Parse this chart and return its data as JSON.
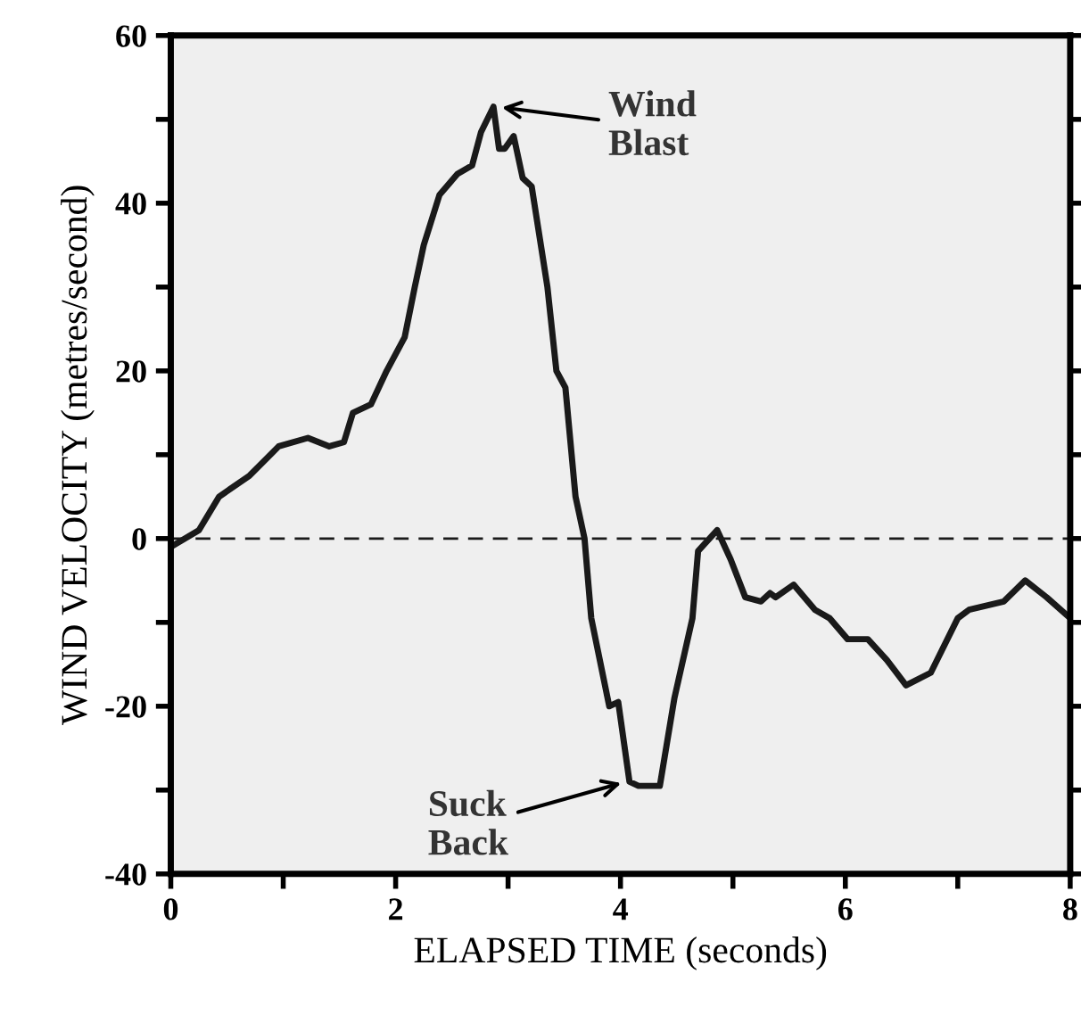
{
  "chart_data": {
    "type": "line",
    "xlabel": "ELAPSED TIME (seconds)",
    "ylabel": "WIND VELOCITY (metres/second)",
    "x": [
      0,
      0.25,
      0.43,
      0.7,
      0.96,
      1.22,
      1.41,
      1.54,
      1.62,
      1.78,
      1.92,
      2.08,
      2.17,
      2.25,
      2.39,
      2.55,
      2.68,
      2.76,
      2.87,
      2.92,
      2.97,
      3.05,
      3.13,
      3.21,
      3.35,
      3.43,
      3.51,
      3.6,
      3.68,
      3.74,
      3.9,
      3.98,
      4.08,
      4.16,
      4.35,
      4.48,
      4.64,
      4.69,
      4.86,
      4.98,
      5.11,
      5.25,
      5.33,
      5.38,
      5.54,
      5.73,
      5.86,
      6.02,
      6.2,
      6.37,
      6.54,
      6.76,
      7.0,
      7.1,
      7.41,
      7.6,
      7.79,
      8.0
    ],
    "series": [
      {
        "color": "#1a1a1a",
        "values": [
          -1,
          1,
          5,
          7.5,
          11,
          12,
          11,
          11.5,
          15,
          16,
          20,
          24,
          30,
          35,
          41,
          43.5,
          44.5,
          48.5,
          51.5,
          46.5,
          46.5,
          48,
          43,
          42,
          30,
          20,
          18,
          5,
          0,
          -9.5,
          -20,
          -19.5,
          -29,
          -29.5,
          -29.5,
          -19,
          -9.5,
          -1.5,
          1,
          -2.5,
          -7,
          -7.5,
          -6.5,
          -7,
          -5.5,
          -8.5,
          -9.5,
          -12,
          -12,
          -14.5,
          -17.5,
          -16,
          -9.5,
          -8.5,
          -7.5,
          -5,
          -7,
          -9.5
        ]
      }
    ],
    "xlim": [
      0,
      8
    ],
    "ylim": [
      -40,
      60
    ],
    "xticks": [
      0,
      {
        "value": 1,
        "label": null
      },
      2,
      {
        "value": 3,
        "label": null
      },
      4,
      {
        "value": 5,
        "label": null
      },
      6,
      {
        "value": 7,
        "label": null
      },
      8
    ],
    "yticks": [
      -40,
      {
        "value": -30,
        "label": null
      },
      -20,
      {
        "value": -10,
        "label": null
      },
      0,
      {
        "value": 10,
        "label": null
      },
      20,
      {
        "value": 30,
        "label": null
      },
      40,
      {
        "value": 50,
        "label": null
      },
      60
    ],
    "ref_lines": [
      {
        "axis": "y",
        "value": 0,
        "color": "#1a1a1a",
        "line_style": "dashed"
      }
    ],
    "annotations": [
      {
        "text": "Wind\nBlast",
        "x": 2.9,
        "y": 51.5
      },
      {
        "text": "Suck\nBack",
        "x": 4.05,
        "y": -29
      }
    ],
    "grid": false,
    "legend": false,
    "marker": "none",
    "line_style": "solid"
  }
}
